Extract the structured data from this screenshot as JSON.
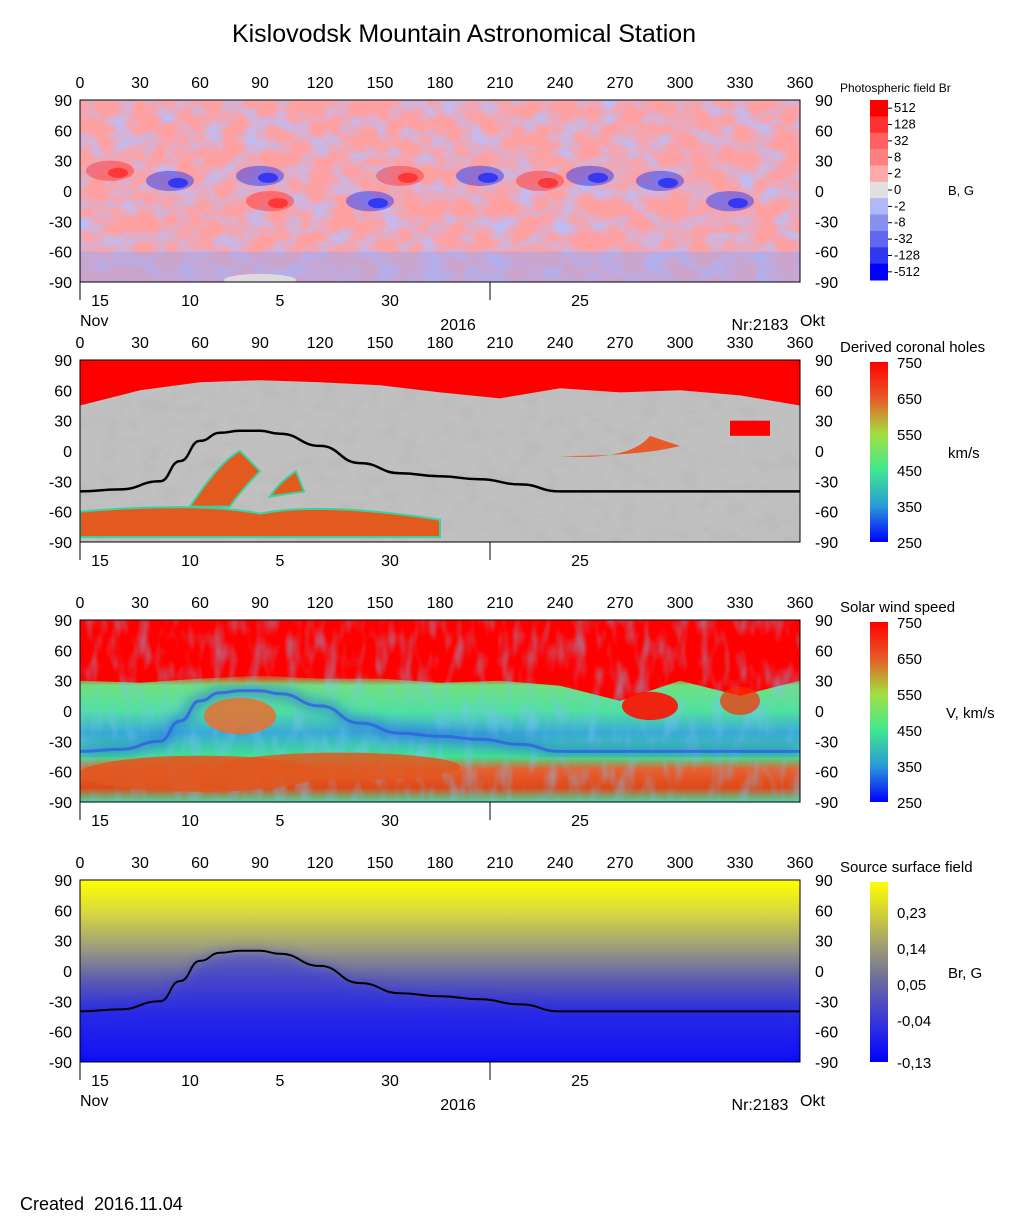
{
  "title": "Kislovodsk Mountain Astronomical Station",
  "created": "Created  2016.11.04",
  "colors": {
    "red": "#ff0000",
    "gray_light": "#c0c0c0",
    "gray_dark": "#808080",
    "neutral_line": "#000000",
    "yellow": "#ffff00",
    "blue": "#0000ff"
  },
  "x_ticks": [
    "0",
    "30",
    "60",
    "90",
    "120",
    "150",
    "180",
    "210",
    "240",
    "270",
    "300",
    "330",
    "360"
  ],
  "y_ticks": [
    "90",
    "60",
    "30",
    "0",
    "-30",
    "-60",
    "-90"
  ],
  "date_ticks": [
    "15",
    "10",
    "5",
    "30",
    "25"
  ],
  "date_labels": {
    "month_left": "Nov",
    "year": "2016",
    "rotation": "Nr:2183",
    "month_right": "Okt"
  },
  "panels": [
    {
      "id": "photospheric",
      "title": "Photospheric field Br",
      "unit": "B, G",
      "cb_ticks": [
        "512",
        "128",
        "32",
        "8",
        "2",
        "0",
        "-2",
        "-8",
        "-32",
        "-128",
        "-512"
      ]
    },
    {
      "id": "coronal-holes",
      "title": "Derived coronal holes",
      "unit": "km/s",
      "cb_ticks": [
        "750",
        "650",
        "550",
        "450",
        "350",
        "250"
      ]
    },
    {
      "id": "solar-wind",
      "title": "Solar wind speed",
      "unit": "V, km/s",
      "cb_ticks": [
        "750",
        "650",
        "550",
        "450",
        "350",
        "250"
      ]
    },
    {
      "id": "source-surface",
      "title": "Source surface field",
      "unit": "Br, G",
      "cb_ticks": [
        "0,23",
        "0,14",
        "0,05",
        "-0,04",
        "-0,13"
      ]
    }
  ],
  "chart_data": [
    {
      "type": "heatmap",
      "title": "Photospheric field Br",
      "colorbar_label": "B, G",
      "colorbar_ticks": [
        512,
        128,
        32,
        8,
        2,
        0,
        -2,
        -8,
        -32,
        -128,
        -512
      ],
      "xlim": [
        0,
        360
      ],
      "ylim": [
        -90,
        90
      ],
      "strong_features": [
        {
          "lon": 45,
          "lat": 10,
          "sign": "negative"
        },
        {
          "lon": 90,
          "lat": 15,
          "sign": "negative"
        },
        {
          "lon": 145,
          "lat": -10,
          "sign": "negative"
        },
        {
          "lon": 200,
          "lat": 15,
          "sign": "negative"
        },
        {
          "lon": 255,
          "lat": 15,
          "sign": "negative"
        },
        {
          "lon": 290,
          "lat": 10,
          "sign": "negative"
        },
        {
          "lon": 325,
          "lat": -10,
          "sign": "negative"
        },
        {
          "lon": 15,
          "lat": 20,
          "sign": "positive"
        },
        {
          "lon": 95,
          "lat": -10,
          "sign": "positive"
        },
        {
          "lon": 160,
          "lat": 15,
          "sign": "positive"
        },
        {
          "lon": 230,
          "lat": 10,
          "sign": "positive"
        }
      ]
    },
    {
      "type": "heatmap",
      "title": "Derived coronal holes",
      "colorbar_label": "km/s",
      "colorbar_ticks": [
        750,
        650,
        550,
        450,
        350,
        250
      ],
      "xlim": [
        0,
        360
      ],
      "ylim": [
        -90,
        90
      ],
      "neutral_line": {
        "lon": [
          0,
          20,
          40,
          50,
          60,
          70,
          80,
          90,
          100,
          120,
          140,
          160,
          180,
          200,
          220,
          240,
          270,
          300,
          330,
          360
        ],
        "lat": [
          -40,
          -38,
          -30,
          -10,
          10,
          18,
          20,
          20,
          17,
          5,
          -12,
          -22,
          -25,
          -28,
          -33,
          -40,
          -40,
          -40,
          -40,
          -40
        ]
      },
      "north_polar_hole": {
        "lat_boundary": 45,
        "speed": 750
      },
      "south_polar_hole": {
        "lon": [
          0,
          180
        ],
        "lat_boundary": -60,
        "speed": 680
      }
    },
    {
      "type": "heatmap",
      "title": "Solar wind speed",
      "colorbar_label": "V, km/s",
      "colorbar_ticks": [
        750,
        650,
        550,
        450,
        350,
        250
      ],
      "xlim": [
        0,
        360
      ],
      "ylim": [
        -90,
        90
      ],
      "north_fast_boundary_lat": 25,
      "south_fast_region": {
        "lon": [
          0,
          180
        ],
        "lat": -60,
        "speed": 700
      }
    },
    {
      "type": "heatmap",
      "title": "Source surface field",
      "colorbar_label": "Br, G",
      "colorbar_ticks": [
        0.23,
        0.14,
        0.05,
        -0.04,
        -0.13
      ],
      "xlim": [
        0,
        360
      ],
      "ylim": [
        -90,
        90
      ],
      "neutral_line": {
        "lon": [
          0,
          20,
          40,
          50,
          60,
          70,
          80,
          90,
          100,
          120,
          140,
          160,
          180,
          200,
          220,
          240,
          270,
          300,
          330,
          360
        ],
        "lat": [
          -40,
          -38,
          -30,
          -10,
          10,
          18,
          20,
          20,
          17,
          5,
          -12,
          -22,
          -25,
          -28,
          -33,
          -40,
          -40,
          -40,
          -40,
          -40
        ]
      }
    }
  ]
}
